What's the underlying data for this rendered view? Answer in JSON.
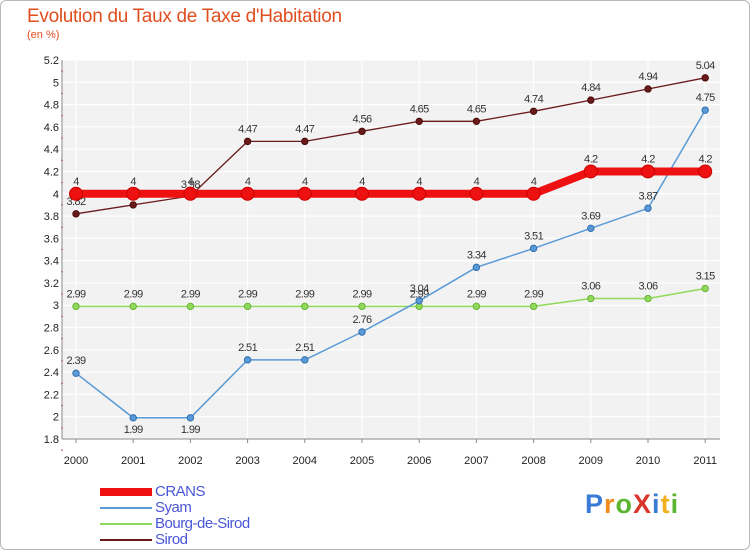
{
  "title": "Evolution du Taux de Taxe d'Habitation",
  "subtitle": "(en %)",
  "chart_data": {
    "type": "line",
    "title": "Evolution du Taux de Taxe d'Habitation",
    "ylabel": "(en %)",
    "xlabel": "",
    "categories": [
      "2000",
      "2001",
      "2002",
      "2003",
      "2004",
      "2005",
      "2006",
      "2007",
      "2008",
      "2009",
      "2010",
      "2011"
    ],
    "ylim": [
      1.8,
      5.2
    ],
    "yticks": [
      "1.8",
      "2",
      "2.2",
      "2.4",
      "2.6",
      "2.8",
      "3",
      "3.2",
      "3.4",
      "3.6",
      "3.8",
      "4",
      "4.2",
      "4.4",
      "4.6",
      "4.8",
      "5",
      "5.2"
    ],
    "series": [
      {
        "name": "Sirod",
        "color": "#6b1a1a",
        "values": [
          3.82,
          3.9,
          3.98,
          4.47,
          4.47,
          4.56,
          4.65,
          4.65,
          4.74,
          4.84,
          4.94,
          5.04
        ],
        "labels": [
          "3.82",
          "3.9",
          "3.98",
          "4.47",
          "4.47",
          "4.56",
          "4.65",
          "4.65",
          "4.74",
          "4.84",
          "4.94",
          "5.04"
        ]
      },
      {
        "name": "Bourg-de-Sirod",
        "color": "#8fda5a",
        "values": [
          2.99,
          2.99,
          2.99,
          2.99,
          2.99,
          2.99,
          2.99,
          2.99,
          2.99,
          3.06,
          3.06,
          3.15
        ],
        "labels": [
          "2.99",
          "2.99",
          "2.99",
          "2.99",
          "2.99",
          "2.99",
          "2.99",
          "2.99",
          "2.99",
          "3.06",
          "3.06",
          "3.15"
        ]
      },
      {
        "name": "Syam",
        "color": "#5a9ad6",
        "values": [
          2.39,
          1.99,
          1.99,
          2.51,
          2.51,
          2.76,
          3.04,
          3.34,
          3.51,
          3.69,
          3.87,
          4.75
        ],
        "labels": [
          "2.39",
          "1.99",
          "1.99",
          "2.51",
          "2.51",
          "2.76",
          "3.04",
          "3.34",
          "3.51",
          "3.69",
          "3.87",
          "4.75"
        ]
      },
      {
        "name": "CRANS",
        "color": "#ee1111",
        "values": [
          4,
          4,
          4,
          4,
          4,
          4,
          4,
          4,
          4,
          4.2,
          4.2,
          4.2
        ],
        "labels": [
          "4",
          "4",
          "4",
          "4",
          "4",
          "4",
          "4",
          "4",
          "4",
          "4.2",
          "4.2",
          "4.2"
        ]
      }
    ],
    "legend": [
      "CRANS",
      "Syam",
      "Bourg-de-Sirod",
      "Sirod"
    ],
    "grid": true,
    "legend_position": "bottom-left"
  },
  "logo": "ProXiti"
}
